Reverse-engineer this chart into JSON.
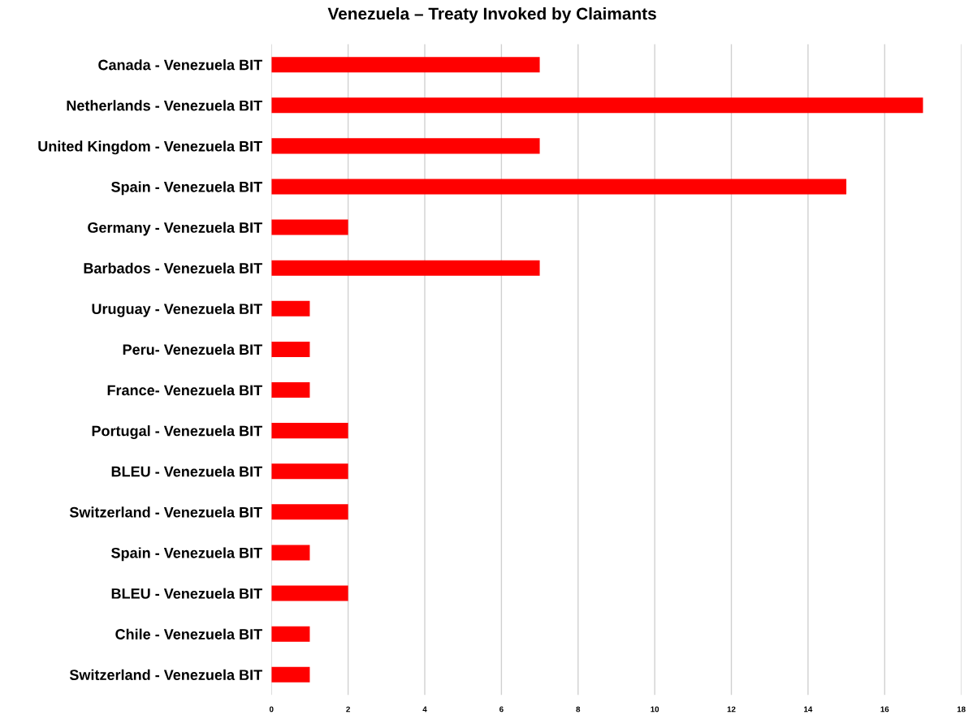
{
  "chart_data": {
    "type": "bar",
    "orientation": "horizontal",
    "title": "Venezuela – Treaty Invoked by Claimants",
    "categories": [
      "Canada - Venezuela BIT",
      "Netherlands - Venezuela BIT",
      "United Kingdom - Venezuela BIT",
      "Spain - Venezuela BIT",
      "Germany - Venezuela BIT",
      "Barbados - Venezuela BIT",
      "Uruguay - Venezuela BIT",
      "Peru- Venezuela BIT",
      "France- Venezuela BIT",
      "Portugal - Venezuela BIT",
      "BLEU - Venezuela BIT",
      "Switzerland - Venezuela BIT",
      "Spain - Venezuela BIT",
      "BLEU - Venezuela BIT",
      "Chile - Venezuela BIT",
      "Switzerland - Venezuela BIT"
    ],
    "values": [
      7,
      17,
      7,
      15,
      2,
      7,
      1,
      1,
      1,
      2,
      2,
      2,
      1,
      2,
      1,
      1
    ],
    "color": "#ff0000",
    "xlim": [
      0,
      18
    ],
    "xticks": [
      0,
      2,
      4,
      6,
      8,
      10,
      12,
      14,
      16,
      18
    ],
    "grid": "x"
  }
}
